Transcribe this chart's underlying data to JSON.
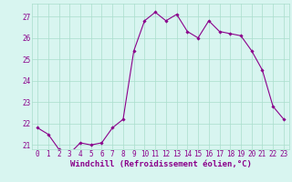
{
  "hours": [
    0,
    1,
    2,
    3,
    4,
    5,
    6,
    7,
    8,
    9,
    10,
    11,
    12,
    13,
    14,
    15,
    16,
    17,
    18,
    19,
    20,
    21,
    22,
    23
  ],
  "values": [
    21.8,
    21.5,
    20.8,
    20.6,
    21.1,
    21.0,
    21.1,
    21.8,
    22.2,
    25.4,
    26.8,
    27.2,
    26.8,
    27.1,
    26.3,
    26.0,
    26.8,
    26.3,
    26.2,
    26.1,
    25.4,
    24.5,
    22.8,
    22.2
  ],
  "line_color": "#8B008B",
  "marker": "D",
  "marker_size": 1.8,
  "bg_color": "#d8f5f0",
  "grid_color": "#aaddcc",
  "xlabel": "Windchill (Refroidissement éolien,°C)",
  "xlabel_color": "#8B008B",
  "ylim": [
    20.8,
    27.6
  ],
  "yticks": [
    21,
    22,
    23,
    24,
    25,
    26,
    27
  ],
  "xlim": [
    -0.5,
    23.5
  ],
  "xticks": [
    0,
    1,
    2,
    3,
    4,
    5,
    6,
    7,
    8,
    9,
    10,
    11,
    12,
    13,
    14,
    15,
    16,
    17,
    18,
    19,
    20,
    21,
    22,
    23
  ],
  "tick_color": "#8B008B",
  "tick_fontsize": 5.5,
  "xlabel_fontsize": 6.5
}
